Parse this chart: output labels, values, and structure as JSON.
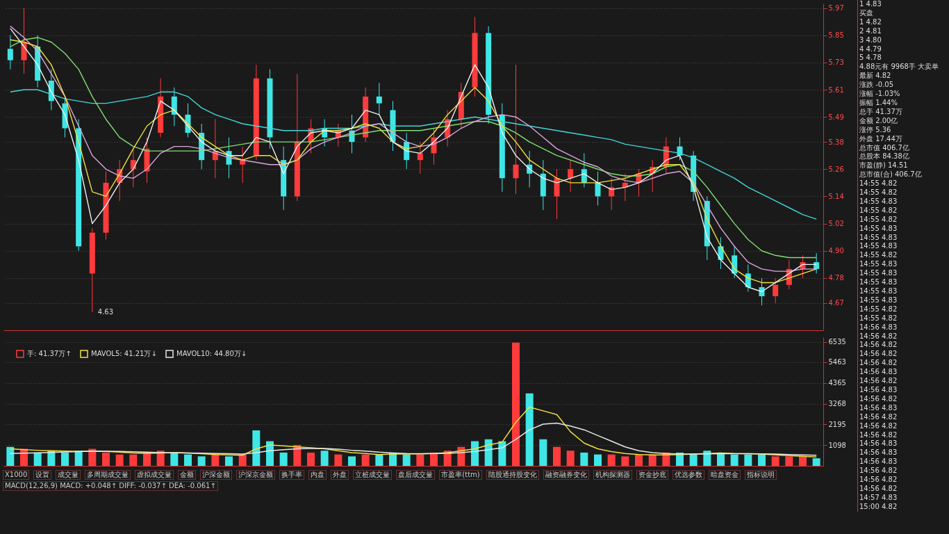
{
  "chart_data": [
    {
      "type": "candlestick",
      "tick_labels": "y",
      "grid": "y",
      "categories": [
        null,
        null,
        null,
        null,
        null,
        null,
        null,
        null,
        null,
        null,
        null,
        null,
        null,
        null,
        null,
        null,
        null,
        null,
        null,
        null,
        null,
        null,
        null,
        null,
        null,
        null,
        null,
        null,
        null,
        null,
        null,
        null,
        null,
        null,
        null,
        null,
        null,
        null,
        null,
        null,
        null,
        null,
        null,
        null,
        null,
        null,
        null,
        null,
        null,
        null,
        null,
        null,
        null,
        null,
        null,
        null,
        null,
        null,
        null,
        null
      ],
      "ylim": [
        4.55,
        5.99
      ],
      "yticks": [
        4.67,
        4.78,
        {
          "value": 4.9,
          "label": "4.90"
        },
        5.02,
        5.14,
        5.26,
        5.38,
        5.49,
        5.61,
        5.73,
        5.85,
        5.97
      ],
      "ohlc": [
        [
          5.79,
          5.85,
          5.7,
          5.74
        ],
        [
          5.74,
          5.97,
          5.68,
          5.82
        ],
        [
          5.8,
          5.85,
          5.62,
          5.65
        ],
        [
          5.65,
          5.7,
          5.52,
          5.56
        ],
        [
          5.55,
          5.58,
          5.4,
          5.44
        ],
        [
          5.44,
          5.48,
          4.9,
          4.92
        ],
        [
          4.8,
          5.0,
          4.63,
          4.98
        ],
        [
          4.98,
          5.25,
          4.95,
          5.2
        ],
        [
          5.2,
          5.3,
          5.12,
          5.26
        ],
        [
          5.26,
          5.35,
          5.18,
          5.3
        ],
        [
          5.25,
          5.4,
          5.2,
          5.35
        ],
        [
          5.42,
          5.66,
          5.4,
          5.58
        ],
        [
          5.58,
          5.62,
          5.45,
          5.5
        ],
        [
          5.5,
          5.55,
          5.4,
          5.42
        ],
        [
          5.42,
          5.46,
          5.26,
          5.3
        ],
        [
          5.3,
          5.48,
          5.22,
          5.34
        ],
        [
          5.34,
          5.4,
          5.22,
          5.28
        ],
        [
          5.28,
          5.36,
          5.2,
          5.3
        ],
        [
          5.32,
          5.72,
          5.3,
          5.66
        ],
        [
          5.66,
          5.7,
          5.35,
          5.4
        ],
        [
          5.3,
          5.36,
          5.08,
          5.14
        ],
        [
          5.14,
          5.68,
          5.12,
          5.38
        ],
        [
          5.38,
          5.48,
          5.33,
          5.44
        ],
        [
          5.44,
          5.48,
          5.36,
          5.4
        ],
        [
          5.4,
          5.46,
          5.36,
          5.43
        ],
        [
          5.43,
          5.5,
          5.33,
          5.38
        ],
        [
          5.4,
          5.62,
          5.38,
          5.58
        ],
        [
          5.58,
          5.64,
          5.5,
          5.55
        ],
        [
          5.52,
          5.56,
          5.34,
          5.38
        ],
        [
          5.38,
          5.42,
          5.26,
          5.3
        ],
        [
          5.3,
          5.38,
          5.24,
          5.33
        ],
        [
          5.33,
          5.44,
          5.28,
          5.4
        ],
        [
          5.4,
          5.52,
          5.36,
          5.48
        ],
        [
          5.48,
          5.64,
          5.44,
          5.6
        ],
        [
          5.62,
          5.93,
          5.58,
          5.86
        ],
        [
          5.86,
          5.89,
          5.46,
          5.5
        ],
        [
          5.5,
          5.55,
          5.16,
          5.22
        ],
        [
          5.22,
          5.72,
          5.15,
          5.28
        ],
        [
          5.28,
          5.34,
          5.18,
          5.24
        ],
        [
          5.24,
          5.3,
          5.08,
          5.14
        ],
        [
          5.14,
          5.26,
          5.04,
          5.22
        ],
        [
          5.22,
          5.3,
          5.16,
          5.26
        ],
        [
          5.26,
          5.33,
          5.18,
          5.2
        ],
        [
          5.2,
          5.25,
          5.1,
          5.14
        ],
        [
          5.14,
          5.22,
          5.08,
          5.18
        ],
        [
          5.18,
          5.24,
          5.12,
          5.2
        ],
        [
          5.2,
          5.26,
          5.14,
          5.24
        ],
        [
          5.24,
          5.3,
          5.16,
          5.27
        ],
        [
          5.27,
          5.4,
          5.24,
          5.36
        ],
        [
          5.36,
          5.4,
          5.3,
          5.32
        ],
        [
          5.32,
          5.34,
          5.12,
          5.16
        ],
        [
          5.12,
          5.14,
          4.86,
          4.92
        ],
        [
          4.92,
          4.96,
          4.82,
          4.86
        ],
        [
          4.88,
          4.92,
          4.78,
          4.8
        ],
        [
          4.8,
          4.84,
          4.72,
          4.74
        ],
        [
          4.74,
          4.78,
          4.66,
          4.7
        ],
        [
          4.7,
          4.78,
          4.67,
          4.75
        ],
        [
          4.75,
          4.86,
          4.73,
          4.82
        ],
        [
          4.82,
          4.88,
          4.78,
          4.85
        ],
        [
          4.85,
          4.89,
          4.8,
          4.82
        ]
      ],
      "colors": [
        "#3ee6e6",
        "#ff3b3b",
        "#3ee6e6",
        "#3ee6e6",
        "#3ee6e6",
        "#3ee6e6",
        "#ff3b3b",
        "#ff3b3b",
        "#ff3b3b",
        "#ff3b3b",
        "#ff3b3b",
        "#ff3b3b",
        "#3ee6e6",
        "#3ee6e6",
        "#3ee6e6",
        "#ff3b3b",
        "#3ee6e6",
        "#ff3b3b",
        "#ff3b3b",
        "#3ee6e6",
        "#3ee6e6",
        "#ff3b3b",
        "#ff3b3b",
        "#3ee6e6",
        "#ff3b3b",
        "#3ee6e6",
        "#ff3b3b",
        "#3ee6e6",
        "#3ee6e6",
        "#3ee6e6",
        "#ff3b3b",
        "#ff3b3b",
        "#ff3b3b",
        "#ff3b3b",
        "#ff3b3b",
        "#3ee6e6",
        "#3ee6e6",
        "#ff3b3b",
        "#3ee6e6",
        "#3ee6e6",
        "#ff3b3b",
        "#ff3b3b",
        "#3ee6e6",
        "#3ee6e6",
        "#ff3b3b",
        "#ff3b3b",
        "#ff3b3b",
        "#ff3b3b",
        "#ff3b3b",
        "#3ee6e6",
        "#3ee6e6",
        "#3ee6e6",
        "#3ee6e6",
        "#3ee6e6",
        "#3ee6e6",
        "#3ee6e6",
        "#ff3b3b",
        "#ff3b3b",
        "#ff3b3b",
        "#3ee6e6"
      ],
      "series": [
        {
          "type": "line",
          "color": "#40d8d8",
          "values": [
            5.6,
            5.61,
            5.61,
            5.59,
            5.57,
            5.56,
            5.55,
            5.55,
            5.56,
            5.57,
            5.58,
            5.6,
            5.6,
            5.58,
            5.53,
            5.5,
            5.48,
            5.46,
            5.45,
            5.44,
            5.43,
            5.43,
            5.43,
            5.44,
            5.44,
            5.44,
            5.45,
            5.46,
            5.45,
            5.45,
            5.45,
            5.46,
            5.47,
            5.48,
            5.49,
            5.48,
            5.47,
            5.46,
            5.45,
            5.44,
            5.43,
            5.42,
            5.41,
            5.4,
            5.39,
            5.37,
            5.36,
            5.35,
            5.34,
            5.33,
            5.31,
            5.28,
            5.25,
            5.22,
            5.18,
            5.15,
            5.12,
            5.09,
            5.06,
            5.04
          ]
        },
        {
          "type": "line",
          "color": "#7ee070",
          "values": [
            5.8,
            5.83,
            5.84,
            5.82,
            5.77,
            5.7,
            5.58,
            5.48,
            5.4,
            5.36,
            5.34,
            5.34,
            5.34,
            5.34,
            5.34,
            5.35,
            5.36,
            5.37,
            5.38,
            5.38,
            5.38,
            5.38,
            5.38,
            5.39,
            5.4,
            5.41,
            5.42,
            5.43,
            5.43,
            5.43,
            5.43,
            5.44,
            5.45,
            5.46,
            5.47,
            5.47,
            5.45,
            5.42,
            5.38,
            5.35,
            5.32,
            5.3,
            5.28,
            5.26,
            5.24,
            5.23,
            5.23,
            5.24,
            5.27,
            5.28,
            5.25,
            5.18,
            5.1,
            5.02,
            4.95,
            4.9,
            4.88,
            4.87,
            4.87,
            4.87
          ]
        },
        {
          "type": "line",
          "color": "#d8a8e0",
          "values": [
            5.89,
            5.84,
            5.78,
            5.68,
            5.58,
            5.45,
            5.32,
            5.26,
            5.23,
            5.22,
            5.26,
            5.33,
            5.36,
            5.36,
            5.35,
            5.33,
            5.31,
            5.3,
            5.29,
            5.28,
            5.28,
            5.3,
            5.35,
            5.38,
            5.4,
            5.42,
            5.45,
            5.46,
            5.42,
            5.38,
            5.36,
            5.37,
            5.4,
            5.44,
            5.47,
            5.49,
            5.5,
            5.49,
            5.45,
            5.4,
            5.35,
            5.32,
            5.29,
            5.27,
            5.23,
            5.21,
            5.2,
            5.22,
            5.24,
            5.25,
            5.2,
            5.1,
            5.0,
            4.92,
            4.85,
            4.82,
            4.81,
            4.81,
            4.82,
            4.82
          ]
        },
        {
          "type": "line",
          "color": "#f0e040",
          "values": [
            5.83,
            5.82,
            5.8,
            5.72,
            5.58,
            5.38,
            5.16,
            5.14,
            5.24,
            5.35,
            5.45,
            5.5,
            5.52,
            5.46,
            5.4,
            5.36,
            5.32,
            5.3,
            5.32,
            5.32,
            5.28,
            5.3,
            5.38,
            5.43,
            5.43,
            5.44,
            5.46,
            5.44,
            5.38,
            5.35,
            5.36,
            5.42,
            5.5,
            5.56,
            5.62,
            5.56,
            5.45,
            5.38,
            5.3,
            5.26,
            5.22,
            5.2,
            5.2,
            5.2,
            5.21,
            5.22,
            5.24,
            5.26,
            5.28,
            5.28,
            5.2,
            5.04,
            4.92,
            4.82,
            4.78,
            4.76,
            4.76,
            4.78,
            4.8,
            4.82
          ]
        },
        {
          "type": "line",
          "color": "#f0f0f0",
          "values": [
            5.88,
            5.8,
            5.72,
            5.6,
            5.5,
            5.3,
            5.02,
            5.1,
            5.2,
            5.26,
            5.38,
            5.56,
            5.52,
            5.45,
            5.38,
            5.34,
            5.32,
            5.32,
            5.4,
            5.38,
            5.24,
            5.36,
            5.42,
            5.43,
            5.42,
            5.44,
            5.52,
            5.5,
            5.38,
            5.34,
            5.33,
            5.38,
            5.44,
            5.58,
            5.72,
            5.62,
            5.42,
            5.32,
            5.26,
            5.22,
            5.2,
            5.22,
            5.24,
            5.2,
            5.17,
            5.18,
            5.2,
            5.24,
            5.3,
            5.32,
            5.18,
            4.96,
            4.86,
            4.8,
            4.74,
            4.72,
            4.76,
            4.8,
            4.84,
            4.84
          ]
        }
      ],
      "annotations": [
        "4.63"
      ]
    },
    {
      "type": "bar",
      "tick_labels": "y",
      "grid": "y",
      "legend": "top left",
      "categories": [
        null,
        null,
        null,
        null,
        null,
        null,
        null,
        null,
        null,
        null,
        null,
        null,
        null,
        null,
        null,
        null,
        null,
        null,
        null,
        null,
        null,
        null,
        null,
        null,
        null,
        null,
        null,
        null,
        null,
        null,
        null,
        null,
        null,
        null,
        null,
        null,
        null,
        null,
        null,
        null,
        null,
        null,
        null,
        null,
        null,
        null,
        null,
        null,
        null,
        null,
        null,
        null,
        null,
        null,
        null,
        null,
        null,
        null,
        null,
        null
      ],
      "ylim": [
        0,
        6780
      ],
      "yticks": [
        1098,
        2195,
        3268,
        4365,
        5463,
        6535
      ],
      "series": [
        {
          "name": "手: 41.37万↑",
          "type": "bar",
          "color": "#ff3b3b",
          "colors": [
            "#3ee6e6",
            "#ff3b3b",
            "#3ee6e6",
            "#3ee6e6",
            "#3ee6e6",
            "#3ee6e6",
            "#ff3b3b",
            "#ff3b3b",
            "#ff3b3b",
            "#ff3b3b",
            "#ff3b3b",
            "#ff3b3b",
            "#3ee6e6",
            "#3ee6e6",
            "#3ee6e6",
            "#ff3b3b",
            "#3ee6e6",
            "#ff3b3b",
            "#3ee6e6",
            "#3ee6e6",
            "#3ee6e6",
            "#ff3b3b",
            "#ff3b3b",
            "#3ee6e6",
            "#ff3b3b",
            "#3ee6e6",
            "#ff3b3b",
            "#3ee6e6",
            "#3ee6e6",
            "#3ee6e6",
            "#ff3b3b",
            "#ff3b3b",
            "#ff3b3b",
            "#ff3b3b",
            "#3ee6e6",
            "#3ee6e6",
            "#3ee6e6",
            "#ff3b3b",
            "#3ee6e6",
            "#3ee6e6",
            "#ff3b3b",
            "#ff3b3b",
            "#3ee6e6",
            "#3ee6e6",
            "#ff3b3b",
            "#ff3b3b",
            "#ff3b3b",
            "#ff3b3b",
            "#ff3b3b",
            "#3ee6e6",
            "#3ee6e6",
            "#3ee6e6",
            "#3ee6e6",
            "#3ee6e6",
            "#3ee6e6",
            "#3ee6e6",
            "#ff3b3b",
            "#ff3b3b",
            "#ff3b3b",
            "#3ee6e6"
          ],
          "values": [
            1000,
            900,
            700,
            800,
            700,
            800,
            900,
            700,
            600,
            600,
            700,
            800,
            700,
            600,
            500,
            600,
            500,
            600,
            1870,
            1300,
            700,
            1100,
            700,
            800,
            600,
            500,
            600,
            600,
            700,
            600,
            600,
            700,
            800,
            1000,
            1300,
            1400,
            1300,
            6500,
            3820,
            1400,
            1000,
            800,
            700,
            600,
            600,
            500,
            600,
            600,
            700,
            700,
            600,
            800,
            700,
            600,
            600,
            600,
            500,
            500,
            500,
            400
          ]
        },
        {
          "name": "MAVOL5: 41.21万↓",
          "type": "line",
          "color": "#f0e040",
          "values": [
            900,
            850,
            820,
            800,
            780,
            760,
            780,
            760,
            720,
            680,
            660,
            680,
            700,
            680,
            640,
            600,
            580,
            560,
            900,
            1100,
            1050,
            1000,
            950,
            900,
            800,
            700,
            650,
            600,
            620,
            620,
            630,
            650,
            700,
            800,
            900,
            1100,
            1250,
            2300,
            3100,
            2900,
            2700,
            1800,
            1200,
            900,
            750,
            650,
            600,
            580,
            580,
            600,
            620,
            650,
            680,
            650,
            640,
            620,
            580,
            540,
            500,
            470
          ]
        },
        {
          "name": "MAVOL10: 44.80万↓",
          "type": "line",
          "color": "#e8e8e8",
          "values": [
            650,
            670,
            690,
            710,
            730,
            750,
            780,
            770,
            760,
            740,
            720,
            700,
            690,
            680,
            670,
            650,
            640,
            620,
            700,
            800,
            850,
            900,
            920,
            920,
            880,
            820,
            780,
            720,
            680,
            650,
            640,
            650,
            660,
            700,
            760,
            850,
            950,
            1400,
            1900,
            2200,
            2250,
            2100,
            1900,
            1600,
            1300,
            1000,
            800,
            700,
            650,
            620,
            620,
            630,
            640,
            640,
            640,
            630,
            620,
            600,
            580,
            560
          ]
        }
      ],
      "annotations": [
        "X1000",
        "设置",
        "成交量",
        "多周期成交量",
        "虚拟成交量",
        "金额",
        "沪深金额",
        "沪深京金额",
        "换手率",
        "内盘",
        "外盘",
        "立桩成交量",
        "盘后成交量",
        "市盈率(ttm)",
        "陆股通持股变化",
        "融资融券变化",
        "机构探测器",
        "资金抄底",
        "优选参数",
        "暗盘资金",
        "指标说明",
        "MACD(12,26,9) MACD: +0.048↑ DIFF: -0.037↑ DEA: -0.061↑"
      ]
    },
    {
      "type": "other",
      "annotations": [
        "1 4.83",
        "买盘",
        "1 4.82",
        "2 4.81",
        "3 4.80",
        "4 4.79",
        "5 4.78",
        "4.88元有 9968手 大卖单",
        "最新 4.82",
        "涨跌 -0.05",
        "涨幅 -1.03%",
        "振幅 1.44%",
        "总手 41.37万",
        "金额 2.00亿",
        "涨停 5.36",
        "外盘 17.44万",
        "总市值 406.7亿",
        "总股本 84.38亿",
        "市盈(静) 14.51",
        "总市值(合) 406.7亿",
        "14:55 4.82",
        "14:55 4.82",
        "14:55 4.83",
        "14:55 4.82",
        "14:55 4.82",
        "14:55 4.83",
        "14:55 4.83",
        "14:55 4.83",
        "14:55 4.82",
        "14:55 4.83",
        "14:55 4.83",
        "14:55 4.83",
        "14:55 4.83",
        "14:55 4.83",
        "14:55 4.82",
        "14:55 4.82",
        "14:56 4.83",
        "14:56 4.82",
        "14:56 4.82",
        "14:56 4.82",
        "14:56 4.82",
        "14:56 4.83",
        "14:56 4.82",
        "14:56 4.83",
        "14:56 4.82",
        "14:56 4.83",
        "14:56 4.82",
        "14:56 4.82",
        "14:56 4.82",
        "14:56 4.83",
        "14:56 4.83",
        "14:56 4.83",
        "14:56 4.82",
        "14:56 4.82",
        "14:56 4.82",
        "14:57 4.83",
        "15:00 4.82"
      ]
    }
  ]
}
